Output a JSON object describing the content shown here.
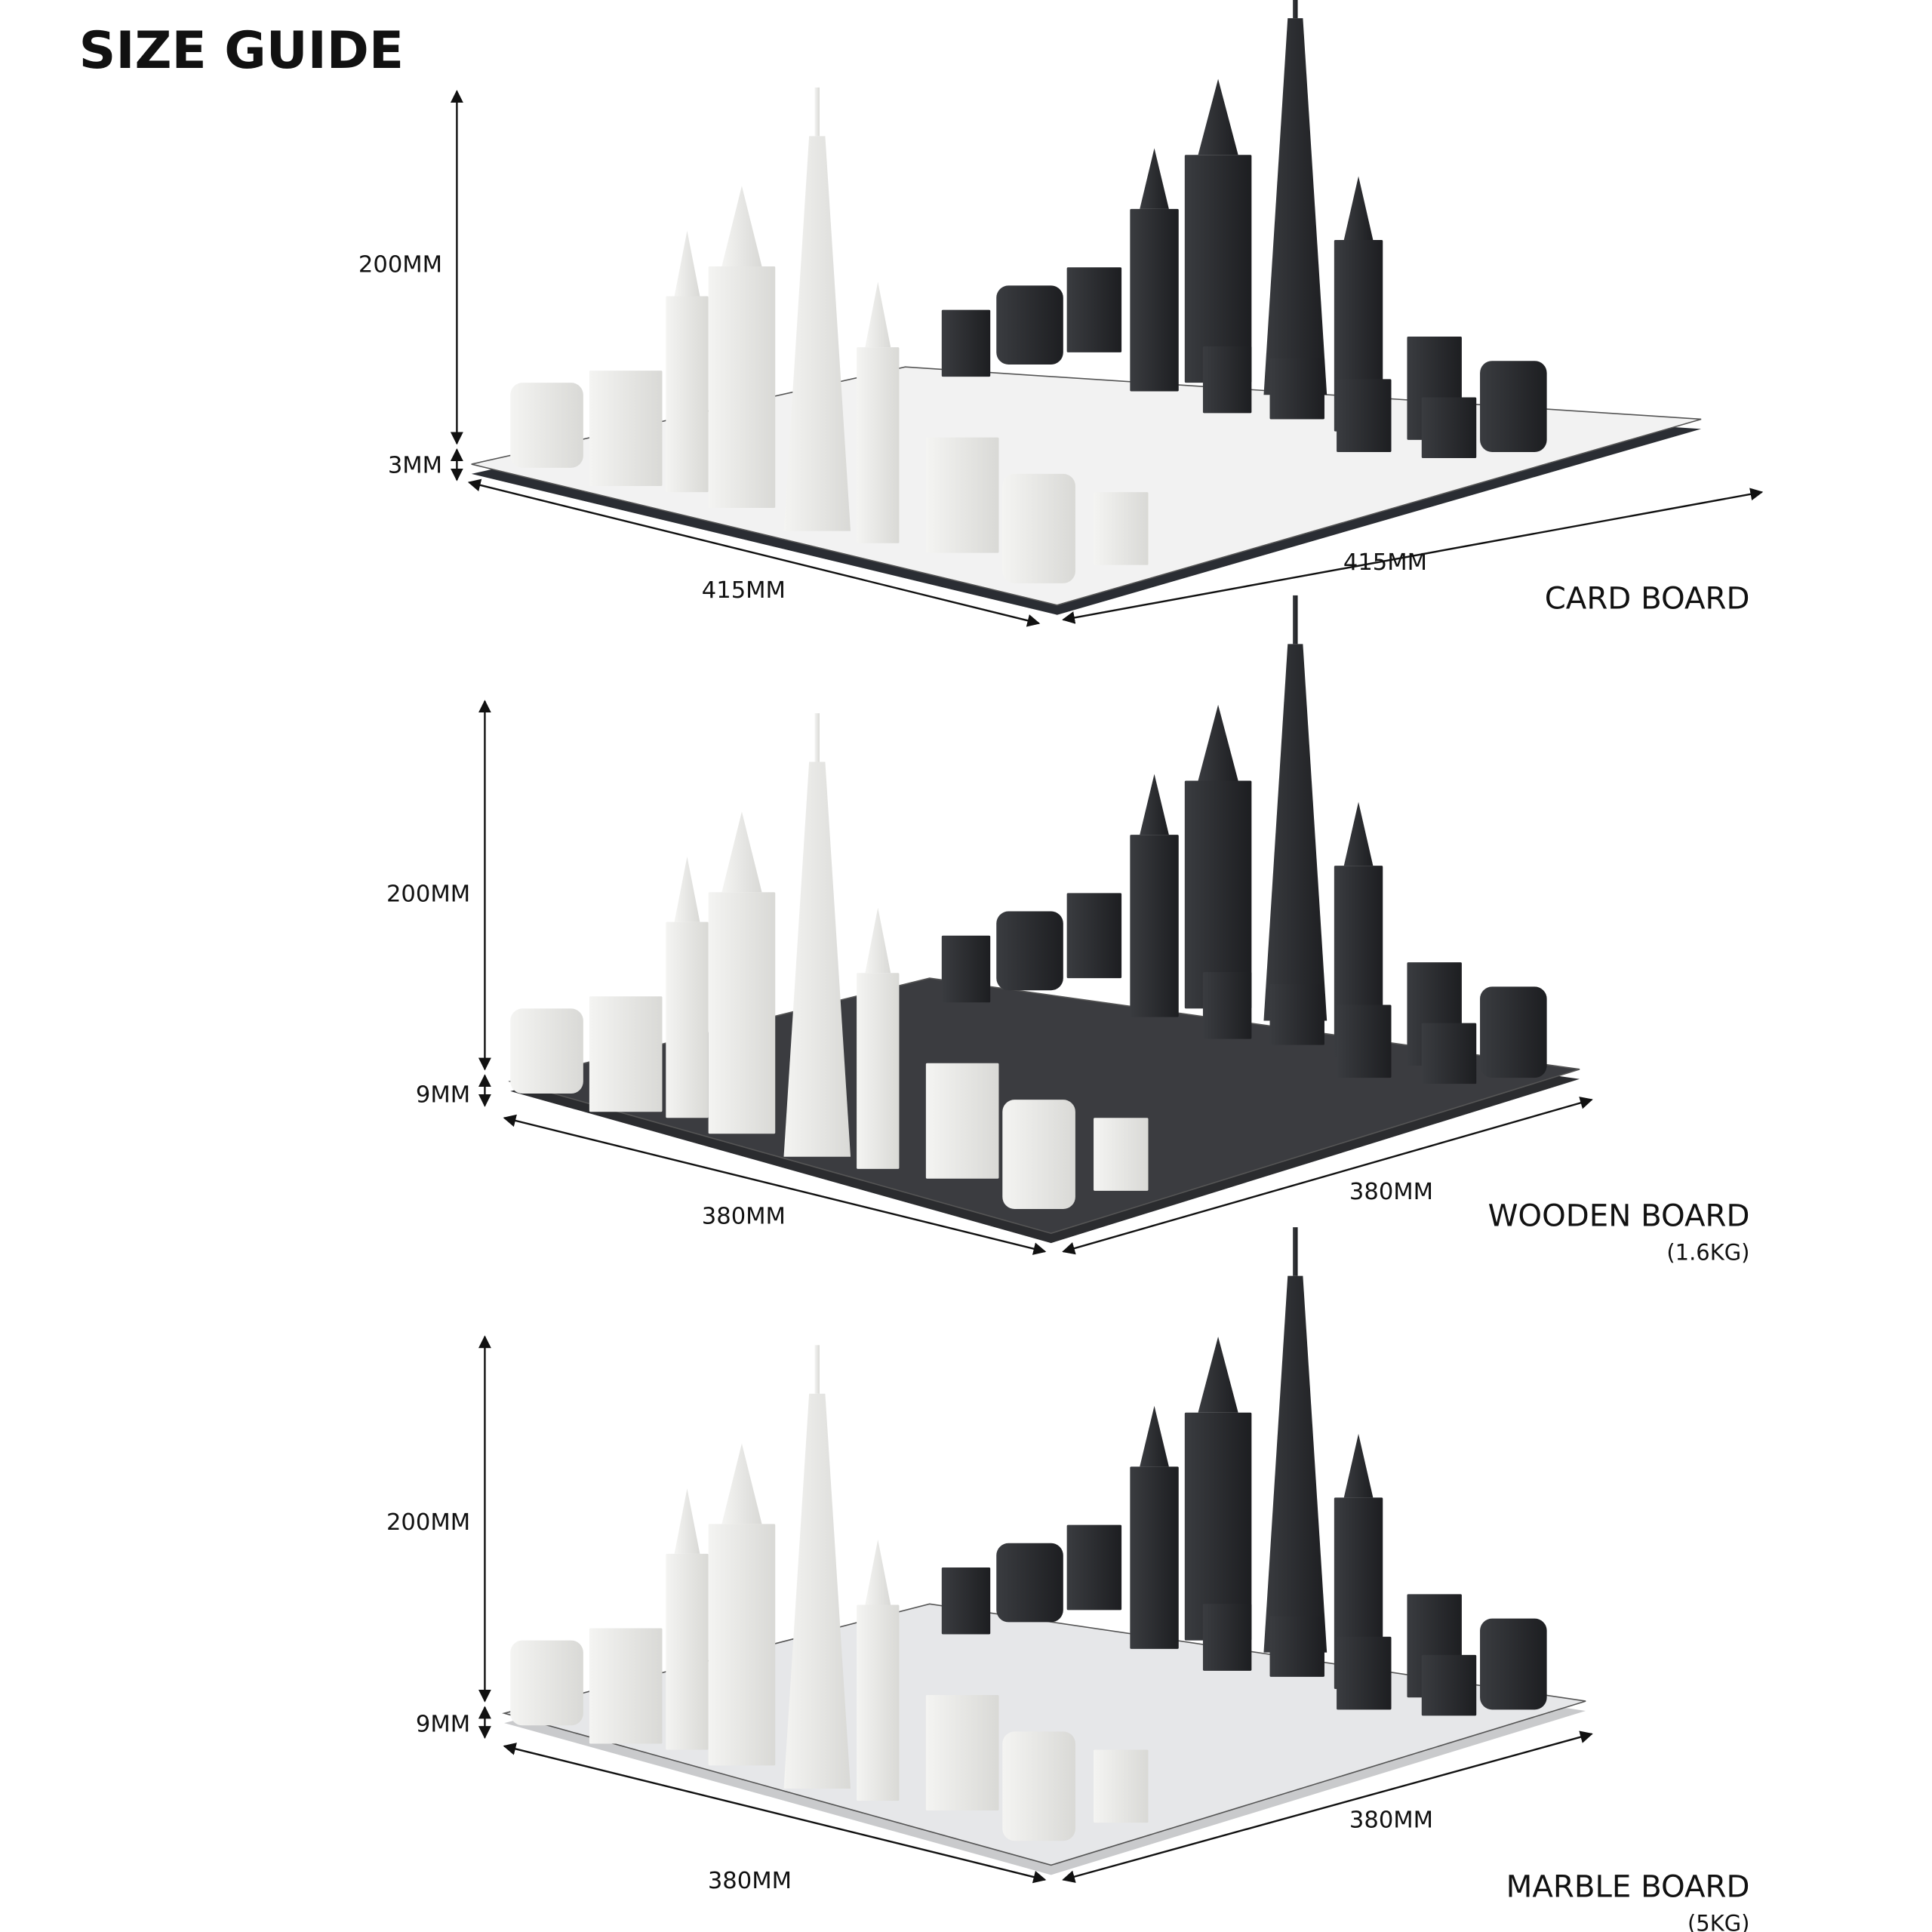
{
  "title": "SIZE GUIDE",
  "boards": [
    {
      "name": "CARD BOARD",
      "height": "200MM",
      "thickness": "3MM",
      "width_left": "415MM",
      "width_right": "415MM"
    },
    {
      "name": "WOODEN BOARD",
      "weight": "(1.6KG)",
      "height": "200MM",
      "thickness": "9MM",
      "width_left": "380MM",
      "width_right": "380MM"
    },
    {
      "name": "MARBLE BOARD",
      "weight": "(5KG)",
      "height": "200MM",
      "thickness": "9MM",
      "width_left": "380MM",
      "width_right": "380MM"
    }
  ]
}
